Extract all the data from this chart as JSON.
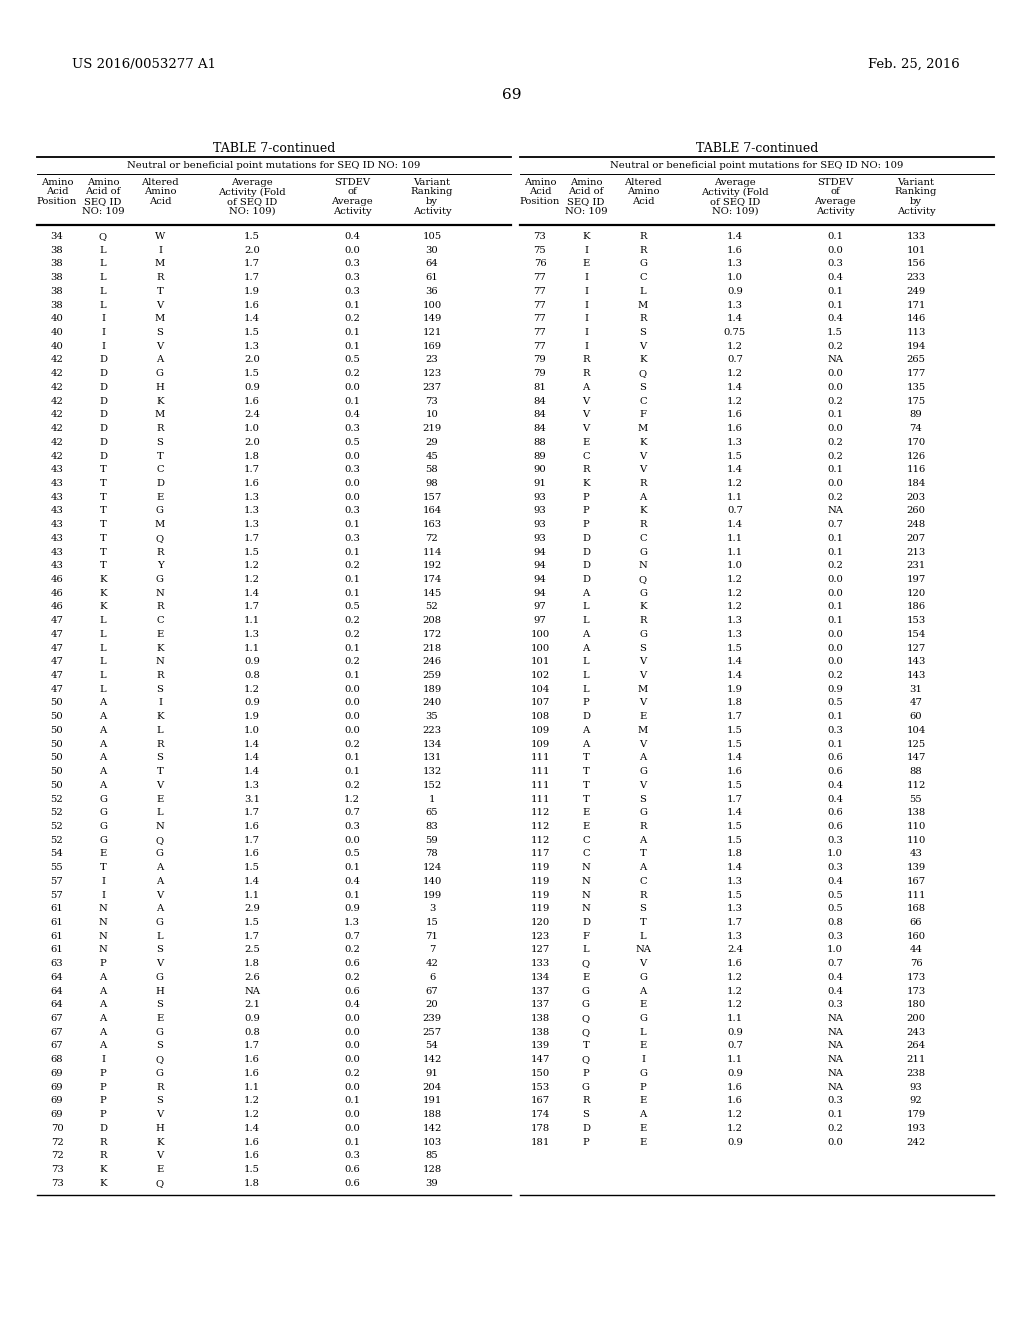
{
  "header_left": "US 2016/0053277 A1",
  "header_right": "Feb. 25, 2016",
  "page_number": "69",
  "table_title": "TABLE 7-continued",
  "subtitle": "Neutral or beneficial point mutations for SEQ ID NO: 109",
  "col_headers": [
    "Amino\nAcid\nPosition",
    "Amino\nAcid of\nSEQ ID\nNO: 109",
    "Altered\nAmino\nAcid",
    "Average\nActivity (Fold\nof SEQ ID\nNO: 109)",
    "STDEV\nof\nAverage\nActivity",
    "Variant\nRanking\nby\nActivity"
  ],
  "left_data": [
    [
      34,
      "Q",
      "W",
      "1.5",
      "0.4",
      "105"
    ],
    [
      38,
      "L",
      "I",
      "2.0",
      "0.0",
      "30"
    ],
    [
      38,
      "L",
      "M",
      "1.7",
      "0.3",
      "64"
    ],
    [
      38,
      "L",
      "R",
      "1.7",
      "0.3",
      "61"
    ],
    [
      38,
      "L",
      "T",
      "1.9",
      "0.3",
      "36"
    ],
    [
      38,
      "L",
      "V",
      "1.6",
      "0.1",
      "100"
    ],
    [
      40,
      "I",
      "M",
      "1.4",
      "0.2",
      "149"
    ],
    [
      40,
      "I",
      "S",
      "1.5",
      "0.1",
      "121"
    ],
    [
      40,
      "I",
      "V",
      "1.3",
      "0.1",
      "169"
    ],
    [
      42,
      "D",
      "A",
      "2.0",
      "0.5",
      "23"
    ],
    [
      42,
      "D",
      "G",
      "1.5",
      "0.2",
      "123"
    ],
    [
      42,
      "D",
      "H",
      "0.9",
      "0.0",
      "237"
    ],
    [
      42,
      "D",
      "K",
      "1.6",
      "0.1",
      "73"
    ],
    [
      42,
      "D",
      "M",
      "2.4",
      "0.4",
      "10"
    ],
    [
      42,
      "D",
      "R",
      "1.0",
      "0.3",
      "219"
    ],
    [
      42,
      "D",
      "S",
      "2.0",
      "0.5",
      "29"
    ],
    [
      42,
      "D",
      "T",
      "1.8",
      "0.0",
      "45"
    ],
    [
      43,
      "T",
      "C",
      "1.7",
      "0.3",
      "58"
    ],
    [
      43,
      "T",
      "D",
      "1.6",
      "0.0",
      "98"
    ],
    [
      43,
      "T",
      "E",
      "1.3",
      "0.0",
      "157"
    ],
    [
      43,
      "T",
      "G",
      "1.3",
      "0.3",
      "164"
    ],
    [
      43,
      "T",
      "M",
      "1.3",
      "0.1",
      "163"
    ],
    [
      43,
      "T",
      "Q",
      "1.7",
      "0.3",
      "72"
    ],
    [
      43,
      "T",
      "R",
      "1.5",
      "0.1",
      "114"
    ],
    [
      43,
      "T",
      "Y",
      "1.2",
      "0.2",
      "192"
    ],
    [
      46,
      "K",
      "G",
      "1.2",
      "0.1",
      "174"
    ],
    [
      46,
      "K",
      "N",
      "1.4",
      "0.1",
      "145"
    ],
    [
      46,
      "K",
      "R",
      "1.7",
      "0.5",
      "52"
    ],
    [
      47,
      "L",
      "C",
      "1.1",
      "0.2",
      "208"
    ],
    [
      47,
      "L",
      "E",
      "1.3",
      "0.2",
      "172"
    ],
    [
      47,
      "L",
      "K",
      "1.1",
      "0.1",
      "218"
    ],
    [
      47,
      "L",
      "N",
      "0.9",
      "0.2",
      "246"
    ],
    [
      47,
      "L",
      "R",
      "0.8",
      "0.1",
      "259"
    ],
    [
      47,
      "L",
      "S",
      "1.2",
      "0.0",
      "189"
    ],
    [
      50,
      "A",
      "I",
      "0.9",
      "0.0",
      "240"
    ],
    [
      50,
      "A",
      "K",
      "1.9",
      "0.0",
      "35"
    ],
    [
      50,
      "A",
      "L",
      "1.0",
      "0.0",
      "223"
    ],
    [
      50,
      "A",
      "R",
      "1.4",
      "0.2",
      "134"
    ],
    [
      50,
      "A",
      "S",
      "1.4",
      "0.1",
      "131"
    ],
    [
      50,
      "A",
      "T",
      "1.4",
      "0.1",
      "132"
    ],
    [
      50,
      "A",
      "V",
      "1.3",
      "0.2",
      "152"
    ],
    [
      52,
      "G",
      "E",
      "3.1",
      "1.2",
      "1"
    ],
    [
      52,
      "G",
      "L",
      "1.7",
      "0.7",
      "65"
    ],
    [
      52,
      "G",
      "N",
      "1.6",
      "0.3",
      "83"
    ],
    [
      52,
      "G",
      "Q",
      "1.7",
      "0.0",
      "59"
    ],
    [
      54,
      "E",
      "G",
      "1.6",
      "0.5",
      "78"
    ],
    [
      55,
      "T",
      "A",
      "1.5",
      "0.1",
      "124"
    ],
    [
      57,
      "I",
      "A",
      "1.4",
      "0.4",
      "140"
    ],
    [
      57,
      "I",
      "V",
      "1.1",
      "0.1",
      "199"
    ],
    [
      61,
      "N",
      "A",
      "2.9",
      "0.9",
      "3"
    ],
    [
      61,
      "N",
      "G",
      "1.5",
      "1.3",
      "15"
    ],
    [
      61,
      "N",
      "L",
      "1.7",
      "0.7",
      "71"
    ],
    [
      61,
      "N",
      "S",
      "2.5",
      "0.2",
      "7"
    ],
    [
      63,
      "P",
      "V",
      "1.8",
      "0.6",
      "42"
    ],
    [
      64,
      "A",
      "G",
      "2.6",
      "0.2",
      "6"
    ],
    [
      64,
      "A",
      "H",
      "NA",
      "0.6",
      "67"
    ],
    [
      64,
      "A",
      "S",
      "2.1",
      "0.4",
      "20"
    ],
    [
      67,
      "A",
      "E",
      "0.9",
      "0.0",
      "239"
    ],
    [
      67,
      "A",
      "G",
      "0.8",
      "0.0",
      "257"
    ],
    [
      67,
      "A",
      "S",
      "1.7",
      "0.0",
      "54"
    ],
    [
      68,
      "I",
      "Q",
      "1.6",
      "0.0",
      "142"
    ],
    [
      69,
      "P",
      "G",
      "1.6",
      "0.2",
      "91"
    ],
    [
      69,
      "P",
      "R",
      "1.1",
      "0.0",
      "204"
    ],
    [
      69,
      "P",
      "S",
      "1.2",
      "0.1",
      "191"
    ],
    [
      69,
      "P",
      "V",
      "1.2",
      "0.0",
      "188"
    ],
    [
      70,
      "D",
      "H",
      "1.4",
      "0.0",
      "142"
    ],
    [
      72,
      "R",
      "K",
      "1.6",
      "0.1",
      "103"
    ],
    [
      72,
      "R",
      "V",
      "1.6",
      "0.3",
      "85"
    ],
    [
      73,
      "K",
      "E",
      "1.5",
      "0.6",
      "128"
    ],
    [
      73,
      "K",
      "Q",
      "1.8",
      "0.6",
      "39"
    ]
  ],
  "right_data": [
    [
      73,
      "K",
      "R",
      "1.4",
      "0.1",
      "133"
    ],
    [
      75,
      "I",
      "R",
      "1.6",
      "0.0",
      "101"
    ],
    [
      76,
      "E",
      "G",
      "1.3",
      "0.3",
      "156"
    ],
    [
      77,
      "I",
      "C",
      "1.0",
      "0.4",
      "233"
    ],
    [
      77,
      "I",
      "L",
      "0.9",
      "0.1",
      "249"
    ],
    [
      77,
      "I",
      "M",
      "1.3",
      "0.1",
      "171"
    ],
    [
      77,
      "I",
      "R",
      "1.4",
      "0.4",
      "146"
    ],
    [
      77,
      "I",
      "S",
      "0.75",
      "1.5",
      "113"
    ],
    [
      77,
      "I",
      "V",
      "1.2",
      "0.2",
      "194"
    ],
    [
      79,
      "R",
      "K",
      "0.7",
      "NA",
      "265"
    ],
    [
      79,
      "R",
      "Q",
      "1.2",
      "0.0",
      "177"
    ],
    [
      81,
      "A",
      "S",
      "1.4",
      "0.0",
      "135"
    ],
    [
      84,
      "V",
      "C",
      "1.2",
      "0.2",
      "175"
    ],
    [
      84,
      "V",
      "F",
      "1.6",
      "0.1",
      "89"
    ],
    [
      84,
      "V",
      "M",
      "1.6",
      "0.0",
      "74"
    ],
    [
      88,
      "E",
      "K",
      "1.3",
      "0.2",
      "170"
    ],
    [
      89,
      "C",
      "V",
      "1.5",
      "0.2",
      "126"
    ],
    [
      90,
      "R",
      "V",
      "1.4",
      "0.1",
      "116"
    ],
    [
      91,
      "K",
      "R",
      "1.2",
      "0.0",
      "184"
    ],
    [
      93,
      "P",
      "A",
      "1.1",
      "0.2",
      "203"
    ],
    [
      93,
      "P",
      "K",
      "0.7",
      "NA",
      "260"
    ],
    [
      93,
      "P",
      "R",
      "1.4",
      "0.7",
      "248"
    ],
    [
      93,
      "D",
      "C",
      "1.1",
      "0.1",
      "207"
    ],
    [
      94,
      "D",
      "G",
      "1.1",
      "0.1",
      "213"
    ],
    [
      94,
      "D",
      "N",
      "1.0",
      "0.2",
      "231"
    ],
    [
      94,
      "D",
      "Q",
      "1.2",
      "0.0",
      "197"
    ],
    [
      94,
      "A",
      "G",
      "1.2",
      "0.0",
      "120"
    ],
    [
      97,
      "L",
      "K",
      "1.2",
      "0.1",
      "186"
    ],
    [
      97,
      "L",
      "R",
      "1.3",
      "0.1",
      "153"
    ],
    [
      100,
      "A",
      "G",
      "1.3",
      "0.0",
      "154"
    ],
    [
      100,
      "A",
      "S",
      "1.5",
      "0.0",
      "127"
    ],
    [
      101,
      "L",
      "V",
      "1.4",
      "0.0",
      "143"
    ],
    [
      102,
      "L",
      "V",
      "1.4",
      "0.2",
      "143"
    ],
    [
      104,
      "L",
      "M",
      "1.9",
      "0.9",
      "31"
    ],
    [
      107,
      "P",
      "V",
      "1.8",
      "0.5",
      "47"
    ],
    [
      108,
      "D",
      "E",
      "1.7",
      "0.1",
      "60"
    ],
    [
      109,
      "A",
      "M",
      "1.5",
      "0.3",
      "104"
    ],
    [
      109,
      "A",
      "V",
      "1.5",
      "0.1",
      "125"
    ],
    [
      111,
      "T",
      "A",
      "1.4",
      "0.6",
      "147"
    ],
    [
      111,
      "T",
      "G",
      "1.6",
      "0.6",
      "88"
    ],
    [
      111,
      "T",
      "V",
      "1.5",
      "0.4",
      "112"
    ],
    [
      111,
      "T",
      "S",
      "1.7",
      "0.4",
      "55"
    ],
    [
      112,
      "E",
      "G",
      "1.4",
      "0.6",
      "138"
    ],
    [
      112,
      "E",
      "R",
      "1.5",
      "0.6",
      "110"
    ],
    [
      112,
      "C",
      "A",
      "1.5",
      "0.3",
      "110"
    ],
    [
      117,
      "C",
      "T",
      "1.8",
      "1.0",
      "43"
    ],
    [
      119,
      "N",
      "A",
      "1.4",
      "0.3",
      "139"
    ],
    [
      119,
      "N",
      "C",
      "1.3",
      "0.4",
      "167"
    ],
    [
      119,
      "N",
      "R",
      "1.5",
      "0.5",
      "111"
    ],
    [
      119,
      "N",
      "S",
      "1.3",
      "0.5",
      "168"
    ],
    [
      120,
      "D",
      "T",
      "1.7",
      "0.8",
      "66"
    ],
    [
      123,
      "F",
      "L",
      "1.3",
      "0.3",
      "160"
    ],
    [
      127,
      "L",
      "NA",
      "2.4",
      "1.0",
      "44"
    ],
    [
      133,
      "Q",
      "V",
      "1.6",
      "0.7",
      "76"
    ],
    [
      134,
      "E",
      "G",
      "1.2",
      "0.4",
      "173"
    ],
    [
      137,
      "G",
      "A",
      "1.2",
      "0.4",
      "173"
    ],
    [
      137,
      "G",
      "E",
      "1.2",
      "0.3",
      "180"
    ],
    [
      138,
      "Q",
      "G",
      "1.1",
      "NA",
      "200"
    ],
    [
      138,
      "Q",
      "L",
      "0.9",
      "NA",
      "243"
    ],
    [
      139,
      "T",
      "E",
      "0.7",
      "NA",
      "264"
    ],
    [
      147,
      "Q",
      "I",
      "1.1",
      "NA",
      "211"
    ],
    [
      150,
      "P",
      "G",
      "0.9",
      "NA",
      "238"
    ],
    [
      153,
      "G",
      "P",
      "1.6",
      "NA",
      "93"
    ],
    [
      167,
      "R",
      "E",
      "1.6",
      "0.3",
      "92"
    ],
    [
      174,
      "S",
      "A",
      "1.2",
      "0.1",
      "179"
    ],
    [
      178,
      "D",
      "E",
      "1.2",
      "0.2",
      "193"
    ],
    [
      181,
      "P",
      "E",
      "0.9",
      "0.0",
      "242"
    ]
  ],
  "bg_color": "#ffffff",
  "text_color": "#000000"
}
